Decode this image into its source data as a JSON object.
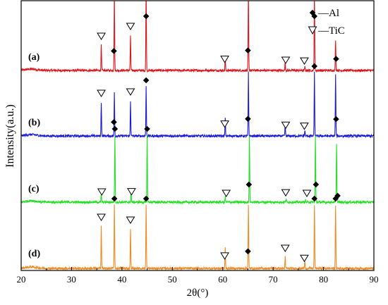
{
  "chart_data": {
    "type": "line",
    "title": "",
    "xlabel": "2θ(°)",
    "ylabel": "Intensity(a.u.)",
    "xlim": [
      20,
      90
    ],
    "xticks": [
      "20",
      "30",
      "40",
      "50",
      "60",
      "70",
      "80",
      "90"
    ],
    "yticks": [],
    "grid": false,
    "legend": {
      "position": "top-right",
      "entries": [
        {
          "marker": "diamond",
          "label": "—Al"
        },
        {
          "marker": "triangle-down",
          "label": "—TiC"
        }
      ]
    },
    "series": [
      {
        "name": "(a)",
        "color": "#e0151b",
        "noise": 1.6,
        "peaks": [
          {
            "x": 35.9,
            "h": 36
          },
          {
            "x": 38.5,
            "h": 110
          },
          {
            "x": 41.7,
            "h": 50
          },
          {
            "x": 44.8,
            "h": 120
          },
          {
            "x": 60.5,
            "h": 20
          },
          {
            "x": 65.1,
            "h": 115
          },
          {
            "x": 72.4,
            "h": 12
          },
          {
            "x": 76.3,
            "h": 5
          },
          {
            "x": 78.2,
            "h": 110
          },
          {
            "x": 82.4,
            "h": 44
          }
        ],
        "markers": [
          {
            "x": 38.4,
            "type": "Al"
          },
          {
            "x": 44.8,
            "type": "Al"
          },
          {
            "x": 65.0,
            "type": "Al"
          },
          {
            "x": 78.2,
            "type": "Al"
          },
          {
            "x": 82.5,
            "type": "Al"
          },
          {
            "x": 35.9,
            "type": "TiC"
          },
          {
            "x": 41.7,
            "type": "TiC"
          },
          {
            "x": 60.4,
            "type": "TiC"
          },
          {
            "x": 72.5,
            "type": "TiC"
          },
          {
            "x": 76.2,
            "type": "TiC"
          }
        ]
      },
      {
        "name": "(b)",
        "color": "#1a1adc",
        "noise": 1.6,
        "peaks": [
          {
            "x": 35.9,
            "h": 48
          },
          {
            "x": 38.5,
            "h": 63
          },
          {
            "x": 41.7,
            "h": 50
          },
          {
            "x": 44.8,
            "h": 70
          },
          {
            "x": 60.5,
            "h": 26
          },
          {
            "x": 65.1,
            "h": 90
          },
          {
            "x": 72.4,
            "h": 16
          },
          {
            "x": 76.3,
            "h": 8
          },
          {
            "x": 78.2,
            "h": 90
          },
          {
            "x": 82.4,
            "h": 88
          }
        ],
        "markers": [
          {
            "x": 38.4,
            "type": "Al"
          },
          {
            "x": 44.8,
            "type": "Al"
          },
          {
            "x": 65.0,
            "type": "Al"
          },
          {
            "x": 78.2,
            "type": "Al"
          },
          {
            "x": 82.5,
            "type": "Al"
          },
          {
            "x": 35.9,
            "type": "TiC"
          },
          {
            "x": 41.7,
            "type": "TiC"
          },
          {
            "x": 60.4,
            "type": "TiC"
          },
          {
            "x": 72.5,
            "type": "TiC"
          },
          {
            "x": 76.2,
            "type": "TiC"
          }
        ]
      },
      {
        "name": "(c)",
        "color": "#22e022",
        "noise": 1.6,
        "peaks": [
          {
            "x": 35.9,
            "h": 12
          },
          {
            "x": 38.6,
            "h": 95
          },
          {
            "x": 41.8,
            "h": 14
          },
          {
            "x": 45.0,
            "h": 95
          },
          {
            "x": 60.5,
            "h": 8
          },
          {
            "x": 65.3,
            "h": 95
          },
          {
            "x": 72.6,
            "h": 5
          },
          {
            "x": 76.4,
            "h": 3
          },
          {
            "x": 78.4,
            "h": 95
          },
          {
            "x": 82.6,
            "h": 84
          }
        ],
        "markers": [
          {
            "x": 38.6,
            "type": "Al"
          },
          {
            "x": 45.0,
            "type": "Al"
          },
          {
            "x": 65.2,
            "type": "Al"
          },
          {
            "x": 78.5,
            "type": "Al"
          },
          {
            "x": 82.8,
            "type": "Al"
          },
          {
            "x": 36.0,
            "type": "TiC"
          },
          {
            "x": 41.9,
            "type": "TiC"
          },
          {
            "x": 60.7,
            "type": "TiC"
          },
          {
            "x": 72.5,
            "type": "TiC"
          },
          {
            "x": 76.7,
            "type": "TiC"
          }
        ]
      },
      {
        "name": "(d)",
        "color": "#f28a22",
        "noise": 1.6,
        "peaks": [
          {
            "x": 35.9,
            "h": 60
          },
          {
            "x": 38.5,
            "h": 90
          },
          {
            "x": 41.7,
            "h": 56
          },
          {
            "x": 44.8,
            "h": 90
          },
          {
            "x": 60.5,
            "h": 30
          },
          {
            "x": 65.1,
            "h": 90
          },
          {
            "x": 72.4,
            "h": 16
          },
          {
            "x": 76.3,
            "h": 10
          },
          {
            "x": 78.2,
            "h": 90
          },
          {
            "x": 82.4,
            "h": 90
          }
        ],
        "markers": [
          {
            "x": 38.5,
            "type": "Al"
          },
          {
            "x": 44.8,
            "type": "Al"
          },
          {
            "x": 65.0,
            "type": "Al"
          },
          {
            "x": 78.2,
            "type": "Al"
          },
          {
            "x": 82.4,
            "type": "Al"
          },
          {
            "x": 35.9,
            "type": "TiC"
          },
          {
            "x": 41.7,
            "type": "TiC"
          },
          {
            "x": 60.4,
            "type": "TiC"
          },
          {
            "x": 72.4,
            "type": "TiC"
          },
          {
            "x": 76.2,
            "type": "TiC"
          }
        ]
      }
    ]
  }
}
